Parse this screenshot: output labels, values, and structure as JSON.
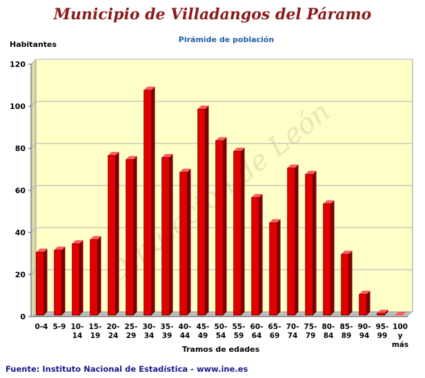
{
  "title": "Municipio de Villadangos del Páramo",
  "source": "Fuente: Instituto Nacional de Estadística - www.ine.es",
  "watermark": "Diputación de León",
  "colors": {
    "title": "#8b1a1a",
    "subtitle": "#1f5fa8",
    "bar": "#e00000",
    "plot_background": "#ffffc8",
    "source": "#1a1a8c"
  },
  "chart_data": {
    "type": "bar",
    "title": "Pirámide de población",
    "ylabel": "Habitantes",
    "xlabel": "Tramos de edades",
    "ylim": [
      0,
      120
    ],
    "yticks": [
      0,
      20,
      40,
      60,
      80,
      100,
      120
    ],
    "grid": true,
    "legend": "none",
    "categories": [
      [
        "0-4"
      ],
      [
        "5-9"
      ],
      [
        "10-",
        "14"
      ],
      [
        "15-",
        "19"
      ],
      [
        "20-",
        "24"
      ],
      [
        "25-",
        "29"
      ],
      [
        "30-",
        "34"
      ],
      [
        "35-",
        "39"
      ],
      [
        "40-",
        "44"
      ],
      [
        "45-",
        "49"
      ],
      [
        "50-",
        "54"
      ],
      [
        "55-",
        "59"
      ],
      [
        "60-",
        "64"
      ],
      [
        "65-",
        "69"
      ],
      [
        "70-",
        "74"
      ],
      [
        "75-",
        "79"
      ],
      [
        "80-",
        "84"
      ],
      [
        "85-",
        "89"
      ],
      [
        "90-",
        "94"
      ],
      [
        "95-",
        "99"
      ],
      [
        "100",
        "y",
        "más"
      ]
    ],
    "values": [
      30,
      31,
      34,
      36,
      76,
      74,
      107,
      75,
      68,
      98,
      83,
      78,
      56,
      44,
      70,
      67,
      53,
      29,
      10,
      1,
      0
    ]
  }
}
